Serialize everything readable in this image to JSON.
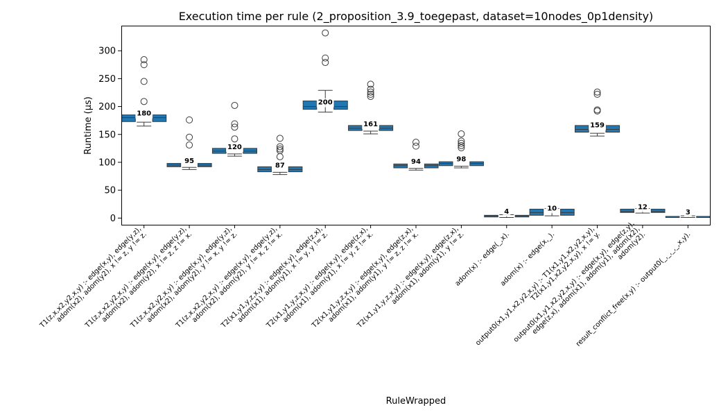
{
  "chart_data": {
    "type": "box",
    "title": "Execution time per rule (2_proposition_3.9_toegepast, dataset=10nodes_0p1density)",
    "xlabel": "RuleWrapped",
    "ylabel": "Runtime (μs)",
    "ylim": [
      -12,
      345
    ],
    "yticks": [
      0,
      50,
      100,
      150,
      200,
      250,
      300
    ],
    "grid": false,
    "legend": "none",
    "box_color": "#1f77b4",
    "categories": [
      {
        "label": [
          "T1(z,x,x2,y2,x,y) :-    edge(x,y),    edge(y,z),",
          "adom(x2),   adom(y2),   x != z,   y != z."
        ],
        "median": 180,
        "median_label": "180",
        "boxes": [
          {
            "x": -0.34,
            "q1": 173,
            "q3": 185
          },
          {
            "x": 0.34,
            "q1": 173,
            "q3": 185
          }
        ],
        "whisker": {
          "low": 165,
          "high": 172
        },
        "outliers": [
          284,
          275,
          245,
          209
        ]
      },
      {
        "label": [
          "T1(z,x,x2,y2,x,y) :-    edge(x,y),    edge(y,z),",
          "adom(x2),   adom(y2),   x != z,   z != x."
        ],
        "median": 95,
        "median_label": "95",
        "boxes": [
          {
            "x": -0.34,
            "q1": 92,
            "q3": 98
          },
          {
            "x": 0.34,
            "q1": 92,
            "q3": 98
          }
        ],
        "whisker": {
          "low": 87,
          "high": 91
        },
        "outliers": [
          176,
          145,
          131
        ]
      },
      {
        "label": [
          "T1(z,x,x2,y2,x,y) :-    edge(x,y),    edge(y,z),",
          "adom(x2),   adom(y2),   y != x,   y != z."
        ],
        "median": 120,
        "median_label": "120",
        "boxes": [
          {
            "x": -0.34,
            "q1": 116,
            "q3": 125
          },
          {
            "x": 0.34,
            "q1": 116,
            "q3": 125
          }
        ],
        "whisker": {
          "low": 111,
          "high": 115
        },
        "outliers": [
          202,
          169,
          163,
          142
        ]
      },
      {
        "label": [
          "T1(z,x,x2,y2,x,y) :-    edge(x,y),    edge(y,z),",
          "adom(x2),   adom(y2),   y != x,   z != x."
        ],
        "median": 87,
        "median_label": "87",
        "boxes": [
          {
            "x": -0.34,
            "q1": 83,
            "q3": 92
          },
          {
            "x": 0.34,
            "q1": 83,
            "q3": 92
          }
        ],
        "whisker": {
          "low": 78,
          "high": 82
        },
        "outliers": [
          143,
          128,
          124,
          121,
          110
        ]
      },
      {
        "label": [
          "T2(x1,y1,y,z,x,y) :-    edge(x,y),    edge(z,x),",
          "adom(x1),   adom(y1),   x != y,   y != z."
        ],
        "median": 200,
        "median_label": "200",
        "boxes": [
          {
            "x": -0.34,
            "q1": 195,
            "q3": 210
          },
          {
            "x": 0.34,
            "q1": 195,
            "q3": 210
          }
        ],
        "whisker": {
          "low": 190,
          "high": 229
        },
        "outliers": [
          332,
          287,
          279
        ]
      },
      {
        "label": [
          "T2(x1,y1,y,z,x,y) :-    edge(x,y),    edge(z,x),",
          "adom(x1),   adom(y1),   x != y,   z != x."
        ],
        "median": 161,
        "median_label": "161",
        "boxes": [
          {
            "x": -0.34,
            "q1": 157,
            "q3": 166
          },
          {
            "x": 0.34,
            "q1": 157,
            "q3": 166
          }
        ],
        "whisker": {
          "low": 151,
          "high": 156
        },
        "outliers": [
          240,
          231,
          226,
          222,
          218
        ]
      },
      {
        "label": [
          "T2(x1,y1,y,z,x,y) :-    edge(x,y),    edge(z,x),",
          "adom(x1),   adom(y1),   y != z,   z != x."
        ],
        "median": 94,
        "median_label": "94",
        "boxes": [
          {
            "x": -0.34,
            "q1": 90,
            "q3": 97
          },
          {
            "x": 0.34,
            "q1": 90,
            "q3": 97
          }
        ],
        "whisker": {
          "low": 86,
          "high": 89
        },
        "outliers": [
          136,
          129
        ]
      },
      {
        "label": [
          "T2(x1,y1,y,z,x,y) :-    edge(x,y),    edge(z,x),",
          "adom(x1),   adom(y1),   y != z."
        ],
        "median": 98,
        "median_label": "98",
        "boxes": [
          {
            "x": -0.34,
            "q1": 94,
            "q3": 101
          },
          {
            "x": 0.34,
            "q1": 94,
            "q3": 101
          }
        ],
        "whisker": {
          "low": 90,
          "high": 93
        },
        "outliers": [
          151,
          138,
          134,
          130,
          126
        ]
      },
      {
        "label": [
          "adom(x) :-    edge(_,x)."
        ],
        "median": 4,
        "median_label": "4",
        "boxes": [
          {
            "x": -0.34,
            "q1": 2,
            "q3": 5
          },
          {
            "x": 0.34,
            "q1": 2,
            "q3": 5
          }
        ],
        "whisker": {
          "low": 1,
          "high": 6
        },
        "outliers": []
      },
      {
        "label": [
          "adom(x) :-    edge(x,_)."
        ],
        "median": 10,
        "median_label": "10",
        "boxes": [
          {
            "x": -0.34,
            "q1": 5,
            "q3": 16
          },
          {
            "x": 0.34,
            "q1": 5,
            "q3": 16
          }
        ],
        "whisker": {
          "low": 4,
          "high": 17
        },
        "outliers": []
      },
      {
        "label": [
          "output0(x1,y1,x2,y2,x,y) :-    T1(x1,y1,x2,y2,x,y),",
          "T2(x1,y1,x2,y2,x,y),    x != y."
        ],
        "median": 159,
        "median_label": "159",
        "boxes": [
          {
            "x": -0.34,
            "q1": 154,
            "q3": 166
          },
          {
            "x": 0.34,
            "q1": 154,
            "q3": 166
          }
        ],
        "whisker": {
          "low": 147,
          "high": 152
        },
        "outliers": [
          226,
          222,
          194,
          192
        ]
      },
      {
        "label": [
          "output0(x1,y1,x2,y2,x,y) :-    edge(x,y),    edge(z,y),",
          "edge(z,x),    adom(x1),    adom(y1),    adom(x2),",
          "adom(y2)."
        ],
        "median": 12,
        "median_label": "12",
        "boxes": [
          {
            "x": -0.34,
            "q1": 10,
            "q3": 16
          },
          {
            "x": 0.34,
            "q1": 10,
            "q3": 16
          }
        ],
        "whisker": {
          "low": 9,
          "high": 17
        },
        "outliers": []
      },
      {
        "label": [
          "result_conflict_free(x,y) :-    output0(_,_,_,_,x,y)."
        ],
        "median": 3,
        "median_label": "3",
        "boxes": [
          {
            "x": -0.34,
            "q1": 1,
            "q3": 3
          },
          {
            "x": 0.34,
            "q1": 1,
            "q3": 3
          }
        ],
        "whisker": {
          "low": 1,
          "high": 4
        },
        "outliers": []
      }
    ]
  }
}
